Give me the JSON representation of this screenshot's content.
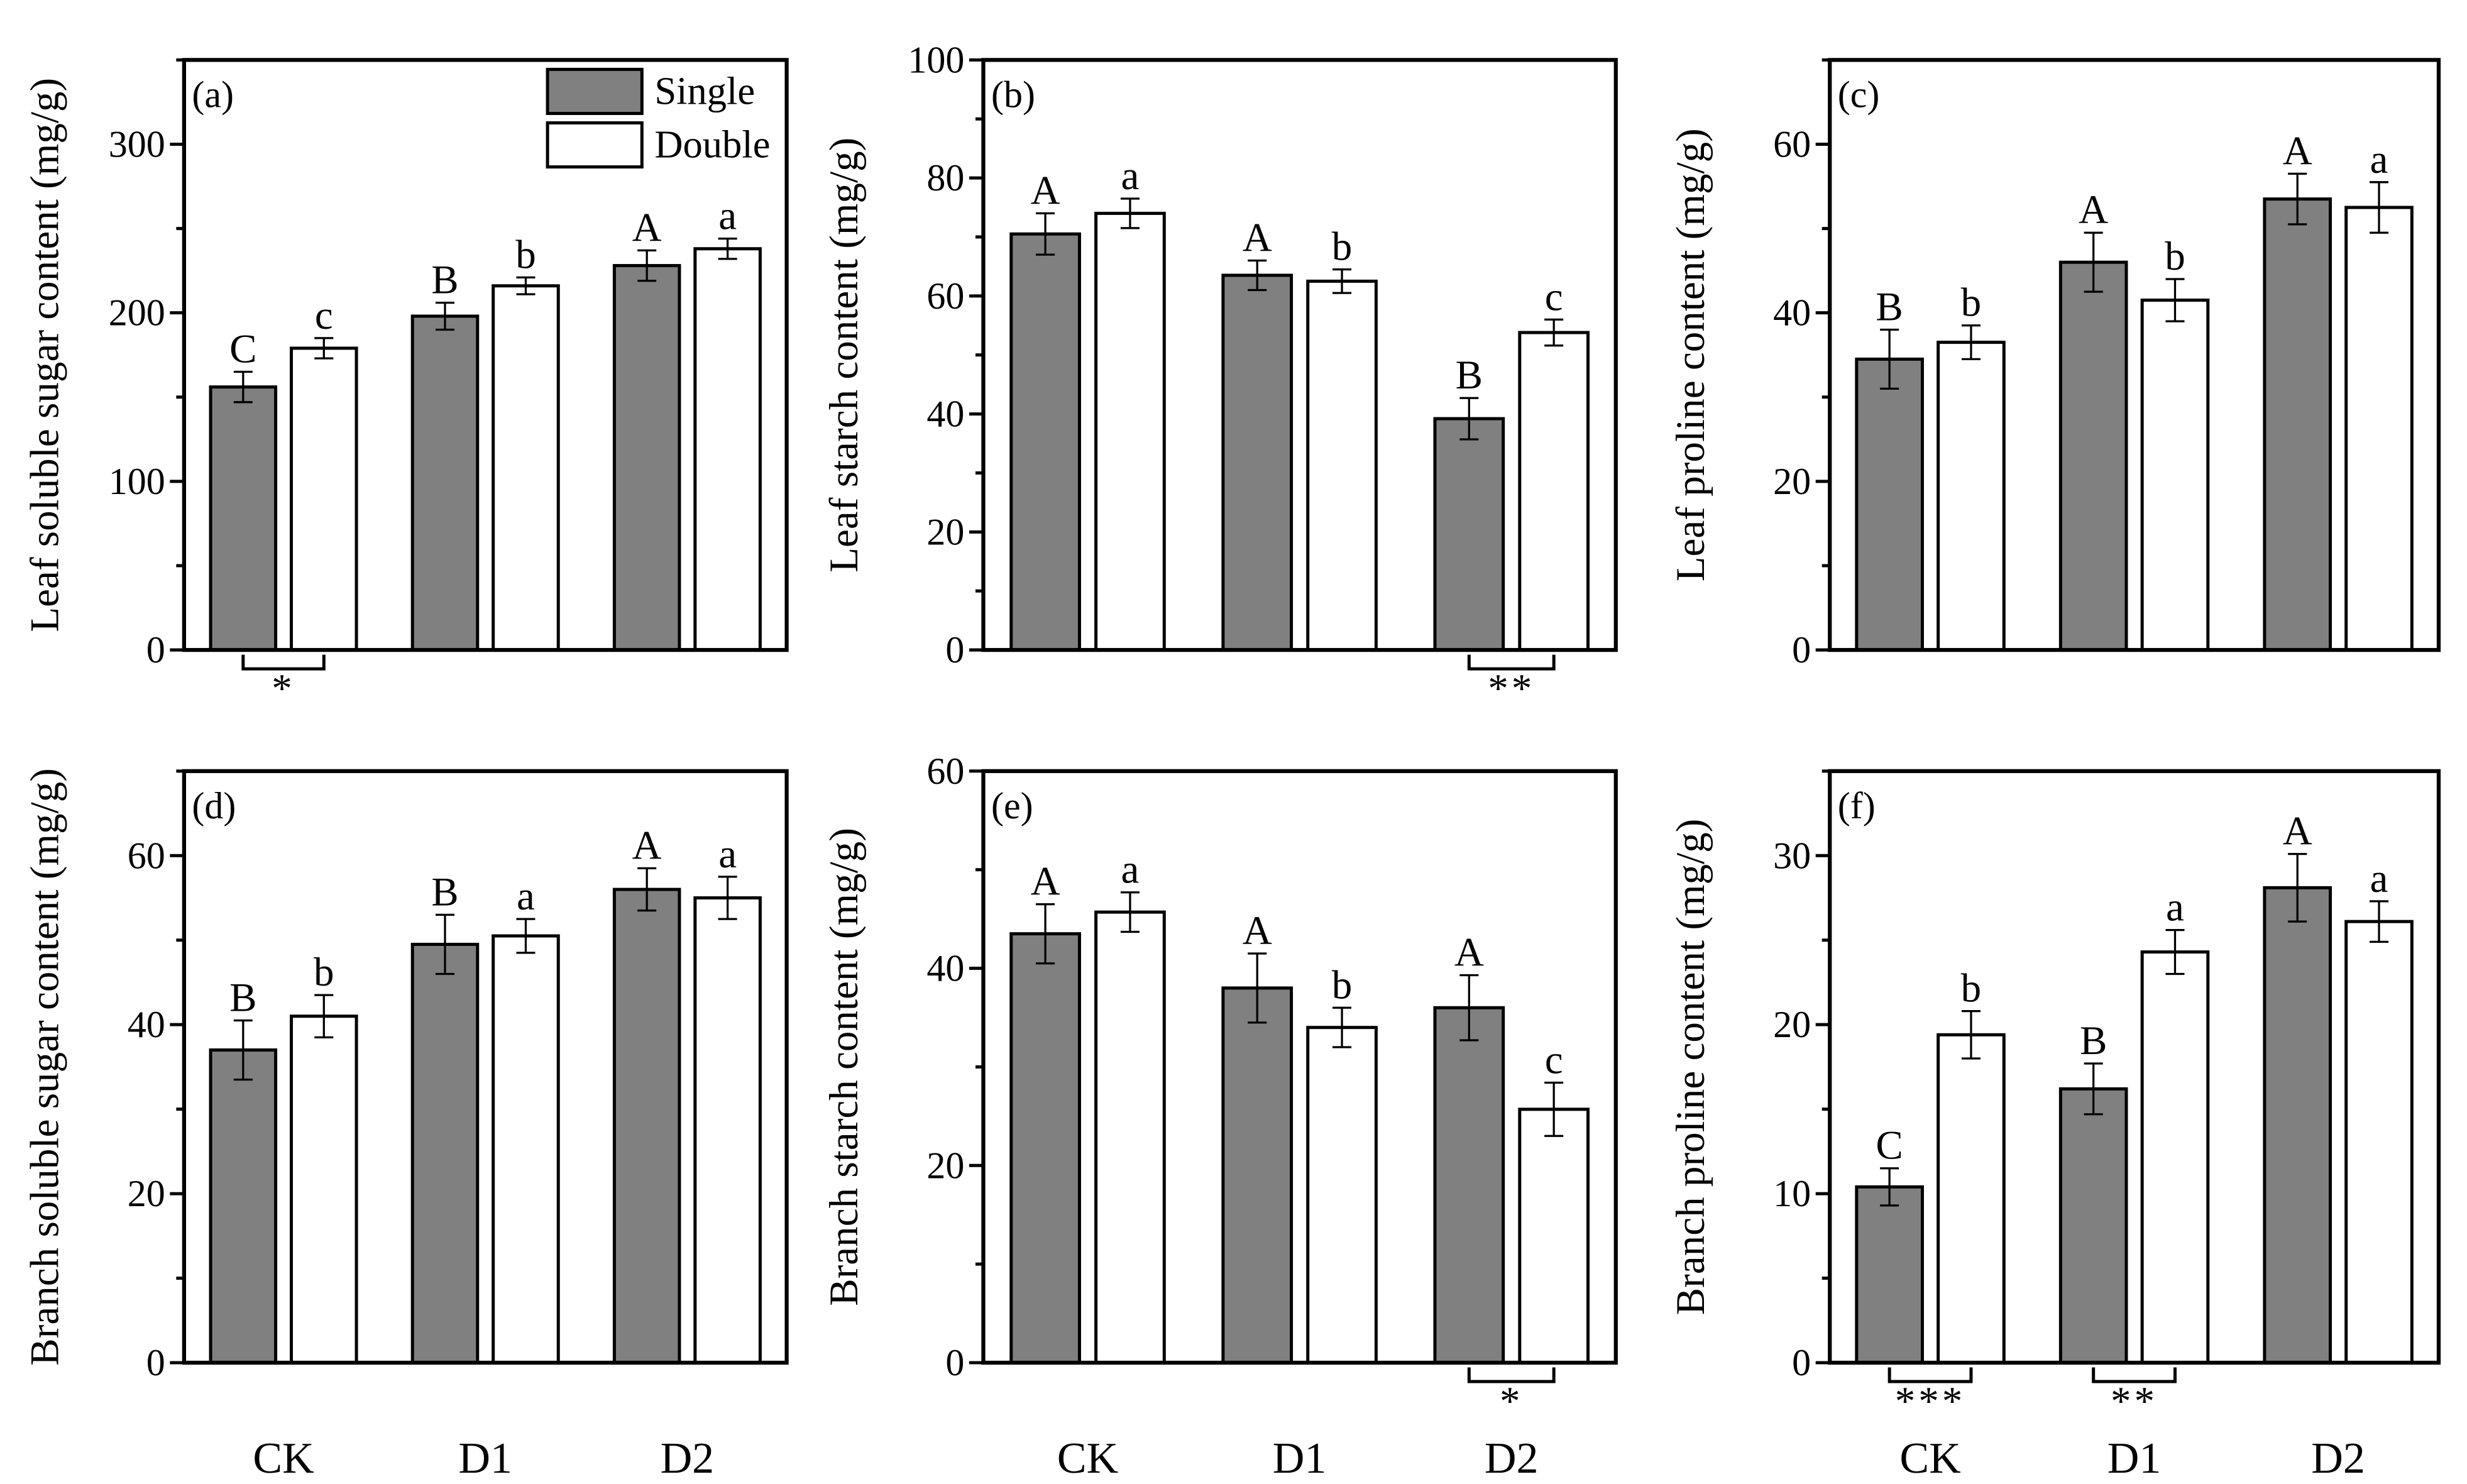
{
  "colors": {
    "single": "#808080",
    "double": "#ffffff",
    "stroke": "#000000"
  },
  "legend": {
    "single": "Single",
    "double": "Double",
    "placement": "top-right of panel (a)"
  },
  "chart_data": [
    {
      "type": "bar",
      "panel": "(a)",
      "ylabel": "Leaf soluble sugar content (mg/g)",
      "ylim": [
        0,
        350
      ],
      "yticks": [
        0,
        100,
        200,
        300
      ],
      "minor": 50,
      "categories": [
        "CK",
        "D1",
        "D2"
      ],
      "show_xlabels": false,
      "series": [
        {
          "name": "Single",
          "values": [
            156,
            198,
            228
          ],
          "errors": [
            9,
            8,
            9
          ],
          "letters": [
            "C",
            "B",
            "A"
          ]
        },
        {
          "name": "Double",
          "values": [
            179,
            216,
            238
          ],
          "errors": [
            6,
            5,
            6
          ],
          "letters": [
            "c",
            "b",
            "a"
          ]
        }
      ],
      "significance": [
        {
          "category": "CK",
          "label": "*"
        }
      ]
    },
    {
      "type": "bar",
      "panel": "(b)",
      "ylabel": "Leaf starch content (mg/g)",
      "ylim": [
        0,
        100
      ],
      "yticks": [
        0,
        20,
        40,
        60,
        80,
        100
      ],
      "minor": 10,
      "categories": [
        "CK",
        "D1",
        "D2"
      ],
      "show_xlabels": false,
      "series": [
        {
          "name": "Single",
          "values": [
            70.5,
            63.5,
            39.2
          ],
          "errors": [
            3.5,
            2.5,
            3.5
          ],
          "letters": [
            "A",
            "A",
            "B"
          ]
        },
        {
          "name": "Double",
          "values": [
            74,
            62.5,
            53.8
          ],
          "errors": [
            2.5,
            2,
            2.2
          ],
          "letters": [
            "a",
            "b",
            "c"
          ]
        }
      ],
      "significance": [
        {
          "category": "D2",
          "label": "**"
        }
      ]
    },
    {
      "type": "bar",
      "panel": "(c)",
      "ylabel": "Leaf proline content (mg/g)",
      "ylim": [
        0,
        70
      ],
      "yticks": [
        0,
        20,
        40,
        60
      ],
      "minor": 10,
      "categories": [
        "CK",
        "D1",
        "D2"
      ],
      "show_xlabels": false,
      "series": [
        {
          "name": "Single",
          "values": [
            34.5,
            46,
            53.5
          ],
          "errors": [
            3.5,
            3.5,
            3
          ],
          "letters": [
            "B",
            "A",
            "A"
          ]
        },
        {
          "name": "Double",
          "values": [
            36.5,
            41.5,
            52.5
          ],
          "errors": [
            2,
            2.5,
            3
          ],
          "letters": [
            "b",
            "b",
            "a"
          ]
        }
      ],
      "significance": []
    },
    {
      "type": "bar",
      "panel": "(d)",
      "ylabel": "Branch soluble sugar content (mg/g)",
      "ylim": [
        0,
        70
      ],
      "yticks": [
        0,
        20,
        40,
        60
      ],
      "minor": 10,
      "categories": [
        "CK",
        "D1",
        "D2"
      ],
      "show_xlabels": true,
      "series": [
        {
          "name": "Single",
          "values": [
            37,
            49.5,
            56
          ],
          "errors": [
            3.5,
            3.5,
            2.5
          ],
          "letters": [
            "B",
            "B",
            "A"
          ]
        },
        {
          "name": "Double",
          "values": [
            41,
            50.5,
            55
          ],
          "errors": [
            2.5,
            2,
            2.5
          ],
          "letters": [
            "b",
            "a",
            "a"
          ]
        }
      ],
      "significance": []
    },
    {
      "type": "bar",
      "panel": "(e)",
      "ylabel": "Branch starch content (mg/g)",
      "ylim": [
        0,
        60
      ],
      "yticks": [
        0,
        20,
        40,
        60
      ],
      "minor": 10,
      "categories": [
        "CK",
        "D1",
        "D2"
      ],
      "show_xlabels": true,
      "series": [
        {
          "name": "Single",
          "values": [
            43.5,
            38,
            36
          ],
          "errors": [
            3,
            3.5,
            3.3
          ],
          "letters": [
            "A",
            "A",
            "A"
          ]
        },
        {
          "name": "Double",
          "values": [
            45.7,
            34,
            25.7
          ],
          "errors": [
            2,
            2,
            2.7
          ],
          "letters": [
            "a",
            "b",
            "c"
          ]
        }
      ],
      "significance": [
        {
          "category": "D2",
          "label": "*"
        }
      ]
    },
    {
      "type": "bar",
      "panel": "(f)",
      "ylabel": "Branch proline content (mg/g)",
      "ylim": [
        0,
        35
      ],
      "yticks": [
        0,
        10,
        20,
        30
      ],
      "minor": 5,
      "categories": [
        "CK",
        "D1",
        "D2"
      ],
      "show_xlabels": true,
      "series": [
        {
          "name": "Single",
          "values": [
            10.4,
            16.2,
            28.1
          ],
          "errors": [
            1.1,
            1.5,
            2
          ],
          "letters": [
            "C",
            "B",
            "A"
          ]
        },
        {
          "name": "Double",
          "values": [
            19.4,
            24.3,
            26.1
          ],
          "errors": [
            1.4,
            1.3,
            1.2
          ],
          "letters": [
            "b",
            "a",
            "a"
          ]
        }
      ],
      "significance": [
        {
          "category": "CK",
          "label": "***"
        },
        {
          "category": "D1",
          "label": "**"
        }
      ]
    }
  ]
}
